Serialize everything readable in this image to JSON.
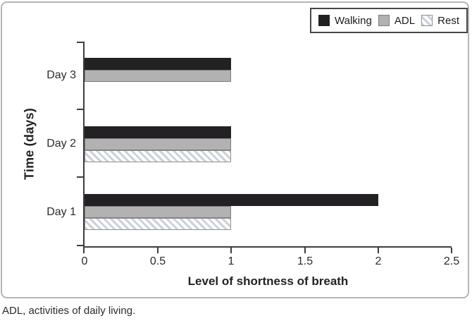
{
  "figure": {
    "footnote": "ADL, activities of daily living."
  },
  "colors": {
    "walking": "#242124",
    "adl_fill": "#b2b2b2",
    "adl_border": "#7d7d7d",
    "rest_fill": "#ffffff",
    "rest_border": "#909090",
    "rest_hatch": "#ccd1d9",
    "axis": "#3d3d3d",
    "frame_border": "#b5b5b5",
    "legend_border": "#474747"
  },
  "chart_data": {
    "type": "bar",
    "orientation": "horizontal",
    "title": "",
    "xlabel": "Level of shortness of breath",
    "ylabel": "Time (days)",
    "categories": [
      "Day 3",
      "Day 2",
      "Day 1"
    ],
    "series": [
      {
        "name": "Walking",
        "values": [
          1,
          1,
          2
        ],
        "fill": "#242124",
        "border": "#242124",
        "pattern": "solid"
      },
      {
        "name": "ADL",
        "values": [
          1,
          1,
          1
        ],
        "fill": "#b2b2b2",
        "border": "#7d7d7d",
        "pattern": "solid"
      },
      {
        "name": "Rest",
        "values": [
          0,
          1,
          1
        ],
        "fill": "#ffffff",
        "border": "#909090",
        "pattern": "hatch",
        "hatch_color": "#ccd1d9"
      }
    ],
    "xlim": [
      0,
      2.5
    ],
    "xticks": [
      0,
      0.5,
      1,
      1.5,
      2,
      2.5
    ],
    "xtick_labels": [
      "0",
      "0.5",
      "1",
      "1.5",
      "2",
      "2.5"
    ],
    "legend": [
      "Walking",
      "ADL",
      "Rest"
    ],
    "legend_position": "top-right",
    "grid": false
  }
}
